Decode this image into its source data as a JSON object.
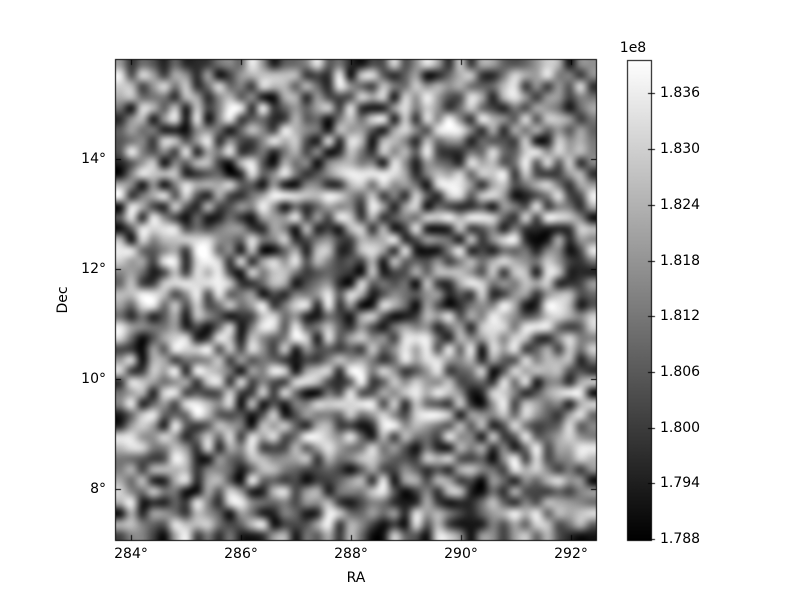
{
  "chart_data": {
    "type": "heatmap",
    "title": "",
    "xlabel": "RA",
    "ylabel": "Dec",
    "background_color": "#ffffff",
    "frame_color": "#000000",
    "text_color": "#000000",
    "x_axis": {
      "label": "RA",
      "tick_labels": [
        "284°",
        "286°",
        "288°",
        "290°",
        "292°"
      ],
      "tick_values": [
        284,
        286,
        288,
        290,
        292
      ],
      "range": [
        283.71,
        292.47
      ]
    },
    "y_axis": {
      "label": "Dec",
      "tick_labels": [
        "8°",
        "10°",
        "12°",
        "14°"
      ],
      "tick_values": [
        8,
        10,
        12,
        14
      ],
      "range": [
        7.05,
        15.82
      ]
    },
    "colorbar": {
      "offset_label": "1e8",
      "tick_labels": [
        "1.836",
        "1.830",
        "1.824",
        "1.818",
        "1.812",
        "1.806",
        "1.800",
        "1.794",
        "1.788"
      ],
      "tick_values_1e8": [
        1.836,
        1.83,
        1.824,
        1.818,
        1.812,
        1.806,
        1.8,
        1.794,
        1.788
      ],
      "range_1e8": [
        1.7878,
        1.8396
      ],
      "colormap": "gray",
      "min_color": "#000000",
      "max_color": "#ffffff"
    },
    "heatmap": {
      "rows": 44,
      "cols": 44,
      "distribution": "uniform-random-noise",
      "interpolation": "bilinear",
      "seed": 1234567,
      "value_range_1e8": [
        1.7878,
        1.8396
      ]
    }
  }
}
